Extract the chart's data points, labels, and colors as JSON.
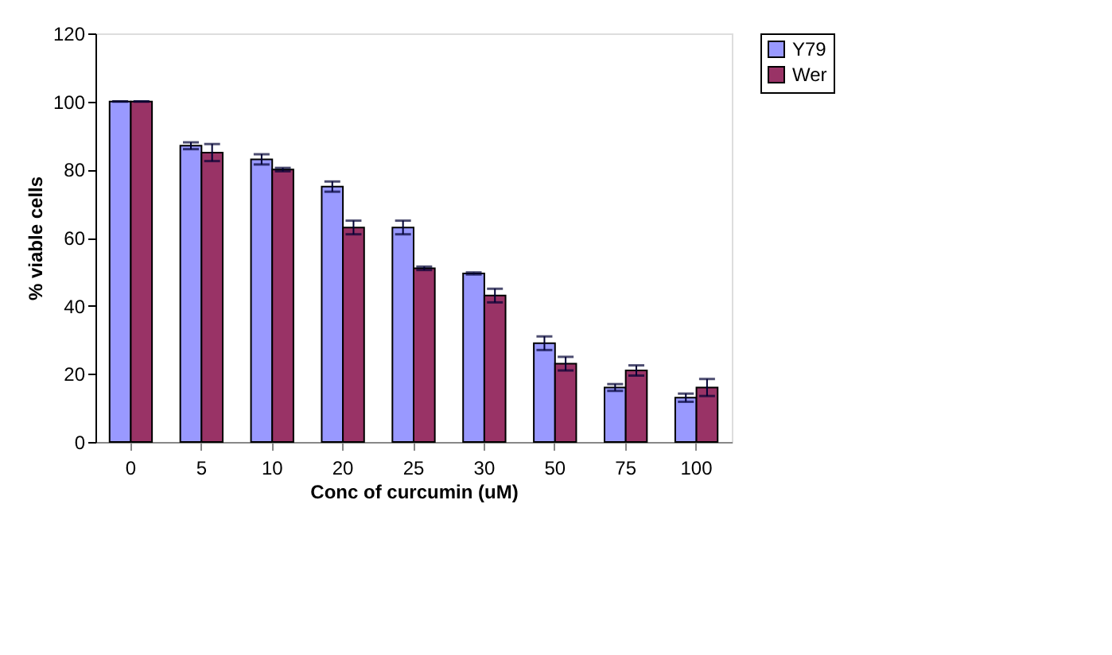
{
  "chart_data": {
    "type": "bar",
    "xlabel": "Conc of curcumin (uM)",
    "ylabel": "% viable cells",
    "categories": [
      "0",
      "5",
      "10",
      "20",
      "25",
      "30",
      "50",
      "75",
      "100"
    ],
    "series": [
      {
        "name": "Y79",
        "color": "#9999ff",
        "values": [
          100,
          87,
          83,
          75,
          63,
          49.5,
          29,
          16,
          13
        ],
        "errors": [
          0,
          1,
          1.5,
          1.5,
          2,
          0.3,
          2,
          1,
          1.2
        ]
      },
      {
        "name": "Wer",
        "color": "#993366",
        "values": [
          100,
          85,
          80,
          63,
          51,
          43,
          23,
          21,
          16
        ],
        "errors": [
          0,
          2.5,
          0.5,
          2,
          0.5,
          2,
          2,
          1.5,
          2.5
        ]
      }
    ],
    "ylim": [
      0,
      120
    ],
    "yticks": [
      0,
      20,
      40,
      60,
      80,
      100,
      120
    ],
    "grid": false,
    "legend": "right"
  }
}
